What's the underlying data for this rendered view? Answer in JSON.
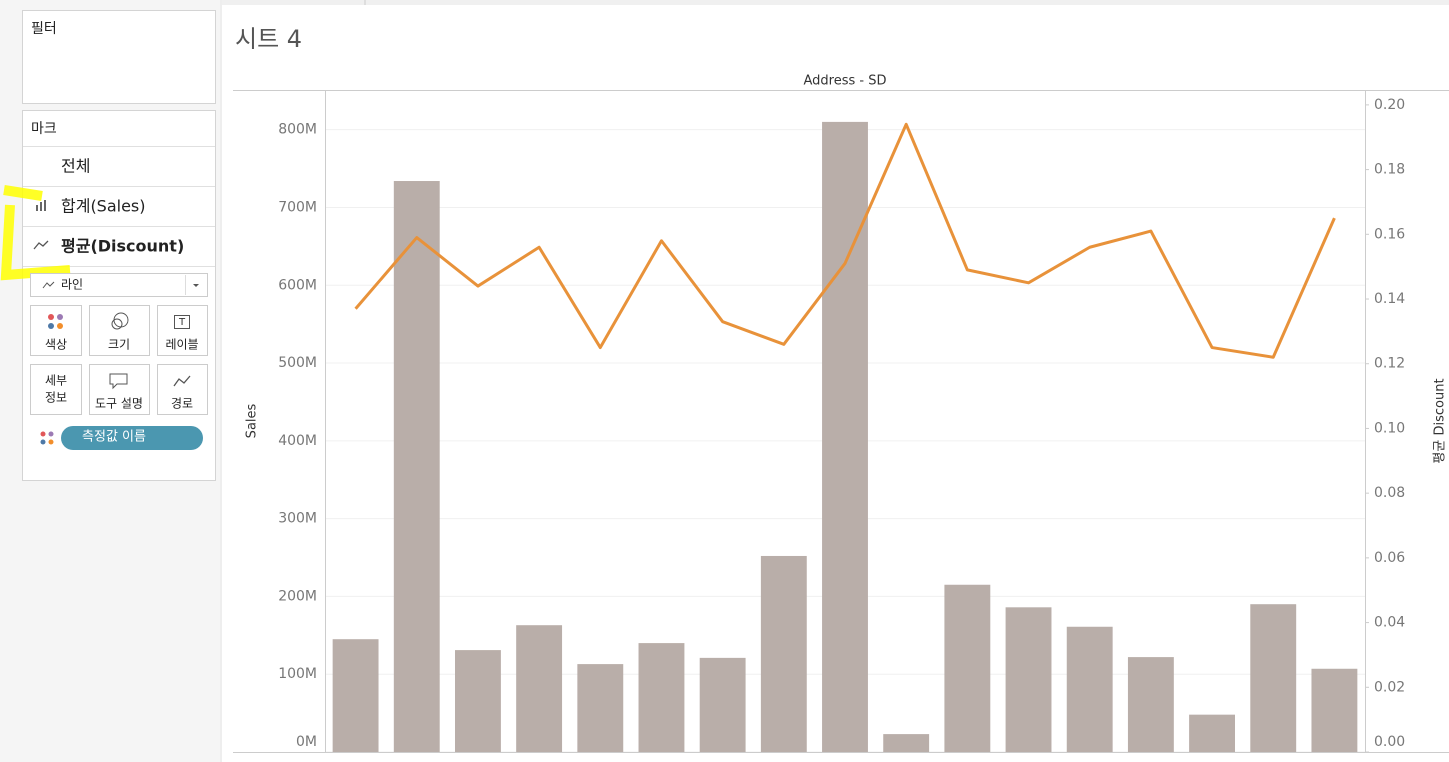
{
  "sidebar": {
    "filter_title": "필터",
    "marks_title": "마크",
    "mark_rows": [
      "전체",
      "합계(Sales)",
      "평균(Discount)"
    ],
    "mark_type": "라인",
    "buttons": [
      "색상",
      "크기",
      "레이블",
      "세부",
      "정보",
      "도구 설명",
      "경로"
    ],
    "pill": "측정값 이름"
  },
  "sheet_title": "시트 4",
  "chart_data": {
    "type": "combo",
    "title": "Address - SD",
    "y_label": "Sales",
    "y2_label": "평균 Discount",
    "categories": [
      null,
      null,
      null,
      null,
      null,
      null,
      null,
      null,
      null,
      null,
      null,
      null,
      null,
      null,
      null,
      null,
      null
    ],
    "series": [
      {
        "type": "bar",
        "color": "#b9aea9",
        "values": [
          145000000,
          734000000,
          131000000,
          163000000,
          113000000,
          140000000,
          121000000,
          252000000,
          810000000,
          23000000,
          215000000,
          186000000,
          161000000,
          122000000,
          48000000,
          190000000,
          107000000
        ]
      },
      {
        "type": "line",
        "axis": "y2",
        "color": "#e8923a",
        "values": [
          0.137,
          0.159,
          0.144,
          0.156,
          0.125,
          0.158,
          0.133,
          0.126,
          0.151,
          0.194,
          0.149,
          0.145,
          0.156,
          0.161,
          0.125,
          0.122,
          0.165
        ]
      }
    ],
    "ylim": [
      0,
      851000000
    ],
    "yticks": [
      {
        "value": 0,
        "label": "0M"
      },
      {
        "value": 100000000,
        "label": "100M"
      },
      {
        "value": 200000000,
        "label": "200M"
      },
      {
        "value": 300000000,
        "label": "300M"
      },
      {
        "value": 400000000,
        "label": "400M"
      },
      {
        "value": 500000000,
        "label": "500M"
      },
      {
        "value": 600000000,
        "label": "600M"
      },
      {
        "value": 700000000,
        "label": "700M"
      },
      {
        "value": 800000000,
        "label": "800M"
      }
    ],
    "y2lim": [
      0,
      0.2046
    ],
    "y2ticks": [
      {
        "value": 0,
        "label": "0.00"
      },
      {
        "value": 0.02,
        "label": "0.02"
      },
      {
        "value": 0.04,
        "label": "0.04"
      },
      {
        "value": 0.06,
        "label": "0.06"
      },
      {
        "value": 0.08,
        "label": "0.08"
      },
      {
        "value": 0.1,
        "label": "0.10"
      },
      {
        "value": 0.12,
        "label": "0.12"
      },
      {
        "value": 0.14,
        "label": "0.14"
      },
      {
        "value": 0.16,
        "label": "0.16"
      },
      {
        "value": 0.18,
        "label": "0.18"
      },
      {
        "value": 0.2,
        "label": "0.20"
      }
    ],
    "grid": true
  }
}
